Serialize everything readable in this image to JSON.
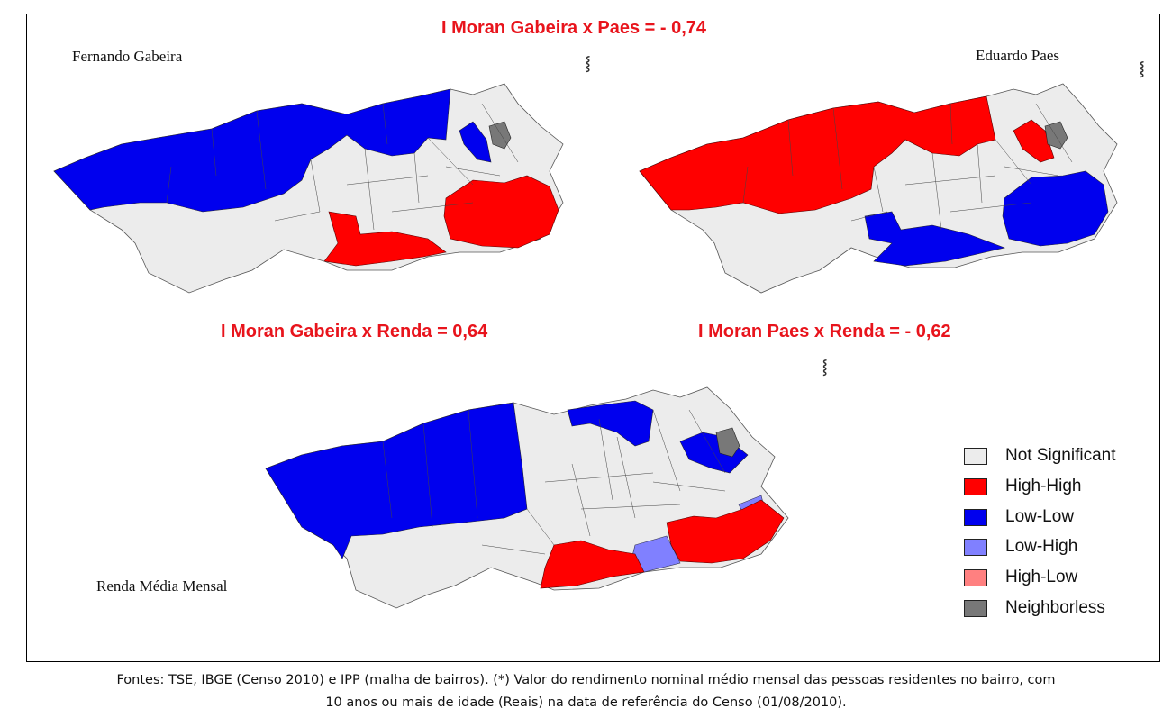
{
  "stats": {
    "top": "I Moran Gabeira x Paes =  - 0,74",
    "left": "I Moran Gabeira x Renda = 0,64",
    "right": "I Moran Paes x Renda = - 0,62"
  },
  "maps": {
    "gabeira": "Fernando Gabeira",
    "paes": "Eduardo Paes",
    "renda": "Renda Média Mensal"
  },
  "legend": [
    {
      "label": "Not Significant",
      "color": "#ececec"
    },
    {
      "label": "High-High",
      "color": "#ff0000"
    },
    {
      "label": "Low-Low",
      "color": "#0000ee"
    },
    {
      "label": "Low-High",
      "color": "#8080ff"
    },
    {
      "label": "High-Low",
      "color": "#ff8080"
    },
    {
      "label": "Neighborless",
      "color": "#787878"
    }
  ],
  "caption": {
    "line1": "Fontes: TSE, IBGE (Censo 2010) e IPP (malha de bairros).  (*) Valor do rendimento nominal médio mensal das pessoas residentes no bairro, com",
    "line2": "10 anos ou mais de idade (Reais) na data de referência do Censo (01/08/2010)."
  }
}
